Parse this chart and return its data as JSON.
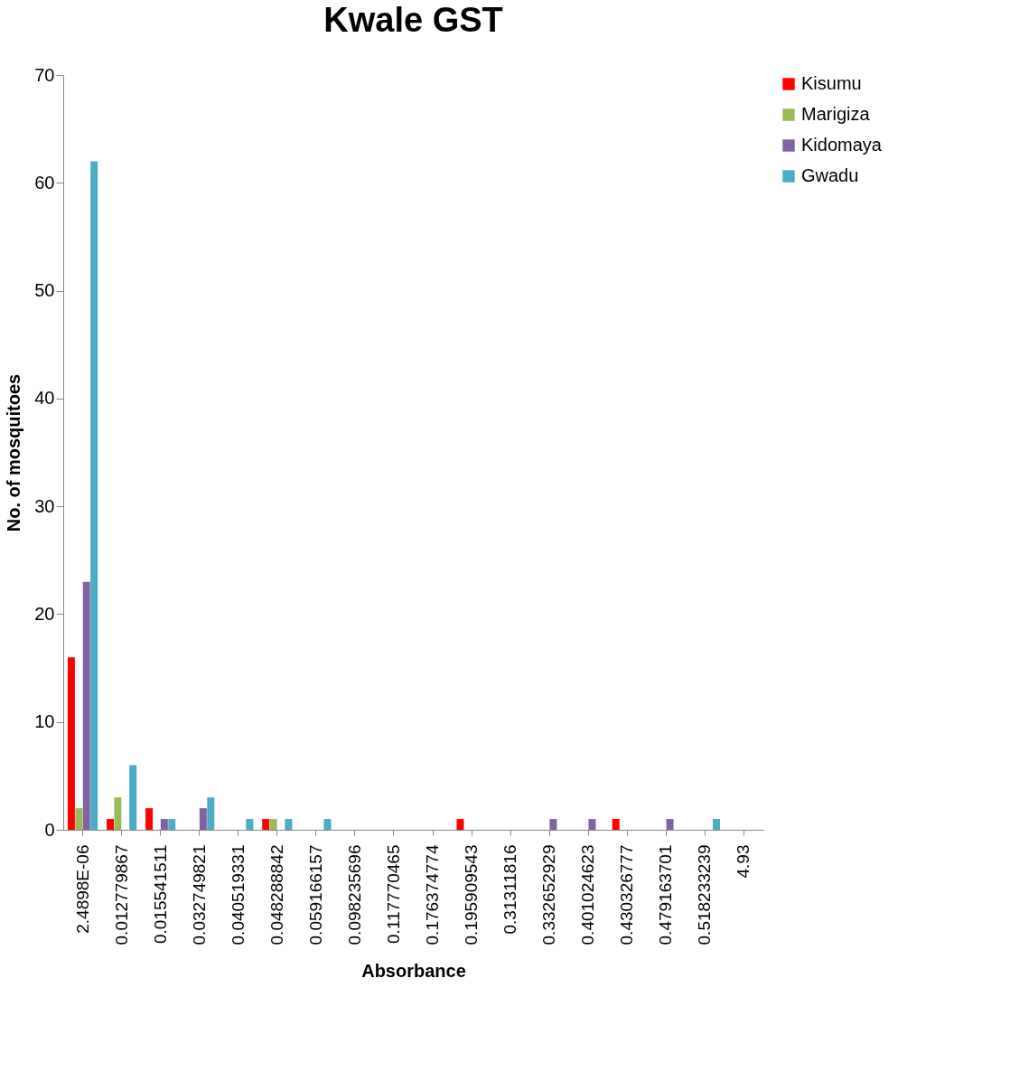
{
  "chart_data": {
    "type": "bar",
    "title": "Kwale GST",
    "xlabel": "Absorbance",
    "ylabel": "No. of mosquitoes",
    "categories": [
      "2.4898E-06",
      "0.012779867",
      "0.015541511",
      "0.032749821",
      "0.040519331",
      "0.048288842",
      "0.059166157",
      "0.098235696",
      "0.117770465",
      "0.176374774",
      "0.195909543",
      "0.31311816",
      "0.332652929",
      "0.401024623",
      "0.430326777",
      "0.479163701",
      "0.518233239",
      "4.93"
    ],
    "series": [
      {
        "name": "Kisumu",
        "color": "#ff0000",
        "values": [
          16,
          1,
          2,
          0,
          0,
          1,
          0,
          0,
          0,
          0,
          1,
          0,
          0,
          0,
          1,
          0,
          0,
          0
        ]
      },
      {
        "name": "Marigiza",
        "color": "#9bbb59",
        "values": [
          2,
          3,
          0,
          0,
          0,
          1,
          0,
          0,
          0,
          0,
          0,
          0,
          0,
          0,
          0,
          0,
          0,
          0
        ]
      },
      {
        "name": "Kidomaya",
        "color": "#8064a2",
        "values": [
          23,
          0,
          1,
          2,
          0,
          0,
          0,
          0,
          0,
          0,
          0,
          0,
          1,
          1,
          0,
          1,
          0,
          0
        ]
      },
      {
        "name": "Gwadu",
        "color": "#4bacc6",
        "values": [
          62,
          6,
          1,
          3,
          1,
          1,
          1,
          0,
          0,
          0,
          0,
          0,
          0,
          0,
          0,
          0,
          1,
          0
        ]
      }
    ],
    "ylim": [
      0,
      70
    ],
    "yticks": [
      0,
      10,
      20,
      30,
      40,
      50,
      60,
      70
    ],
    "grid": false,
    "legend": "right"
  }
}
